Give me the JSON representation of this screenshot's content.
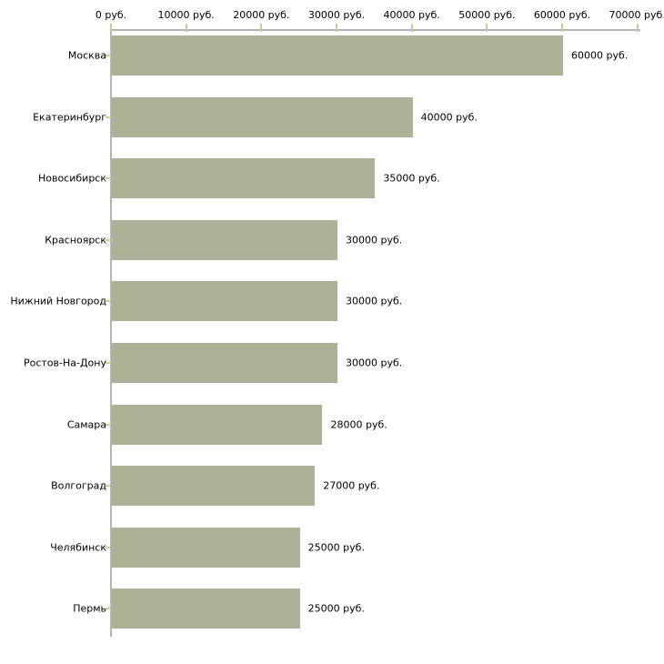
{
  "chart_data": {
    "type": "bar",
    "orientation": "horizontal",
    "title": "",
    "xlabel": "",
    "ylabel": "",
    "unit": "руб.",
    "xlim": [
      0,
      70000
    ],
    "grid": false,
    "legend": false,
    "x_ticks": [
      0,
      10000,
      20000,
      30000,
      40000,
      50000,
      60000,
      70000
    ],
    "x_tick_labels": [
      "0 руб.",
      "10000 руб.",
      "20000 руб.",
      "30000 руб.",
      "40000 руб.",
      "50000 руб.",
      "60000 руб.",
      "70000 руб."
    ],
    "categories": [
      "Москва",
      "Екатеринбург",
      "Новосибирск",
      "Красноярск",
      "Нижний Новгород",
      "Ростов-На-Дону",
      "Самара",
      "Волгоград",
      "Челябинск",
      "Пермь"
    ],
    "values": [
      60000,
      40000,
      35000,
      30000,
      30000,
      30000,
      28000,
      27000,
      25000,
      25000
    ],
    "value_labels": [
      "60000 руб.",
      "40000 руб.",
      "35000 руб.",
      "30000 руб.",
      "30000 руб.",
      "30000 руб.",
      "28000 руб.",
      "27000 руб.",
      "25000 руб.",
      "25000 руб."
    ],
    "colors": {
      "bar": "#acb296",
      "axis_line": "#b4b4b4",
      "tick_mark": "#cccc99",
      "text": "#000000",
      "background": "#ffffff"
    }
  }
}
